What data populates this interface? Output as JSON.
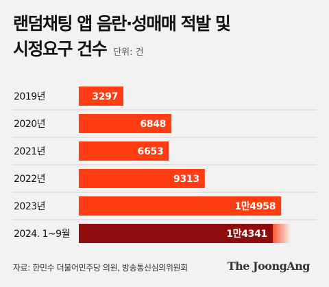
{
  "header": {
    "title_line1": "랜덤채팅 앱 음란·성매매 적발 및",
    "title_line2": "시정요구 건수",
    "unit": "단위: 건"
  },
  "footer": {
    "source": "자료: 한민수 더불어민주당 의원, 방송통신심의위원회",
    "logo": "The JoongAng"
  },
  "colors": {
    "bar": "#ff3d12",
    "bar_highlight": "#8e0c0c",
    "separator": "#cfcfcf",
    "background": "#f2f2f2"
  },
  "chart_data": {
    "type": "bar",
    "orientation": "horizontal",
    "title": "랜덤채팅 앱 음란·성매매 적발 및 시정요구 건수",
    "unit": "단위: 건",
    "categories": [
      "2019년",
      "2020년",
      "2021년",
      "2022년",
      "2023년",
      "2024. 1~9월"
    ],
    "values": [
      3297,
      6848,
      6653,
      9313,
      14958,
      14341
    ],
    "value_labels": [
      "3297",
      "6848",
      "6653",
      "9313",
      "1만4958",
      "1만4341"
    ],
    "highlight_index": 5,
    "xlim": [
      0,
      15000
    ],
    "grid": false,
    "legend": "none"
  }
}
